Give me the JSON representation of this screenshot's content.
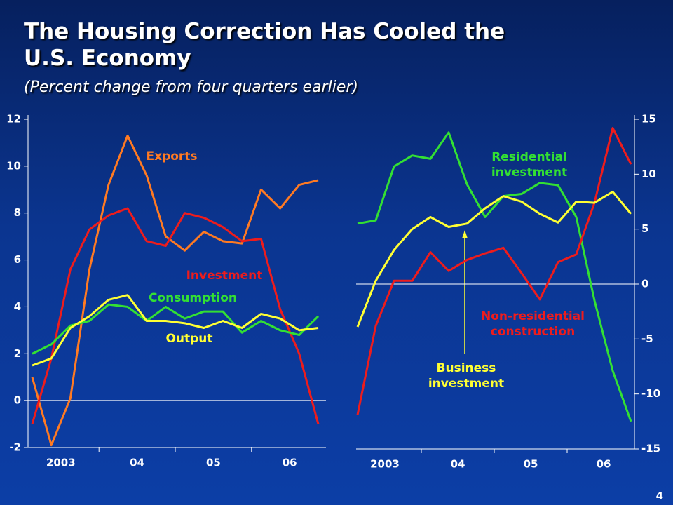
{
  "title": "The Housing Correction Has Cooled the U.S. Economy",
  "subtitle": "(Percent change from four quarters earlier)",
  "page_number": "4",
  "chart_data": [
    {
      "type": "line",
      "categories": [
        "2003",
        null,
        null,
        null,
        "04",
        null,
        null,
        null,
        "05",
        null,
        null,
        null,
        "06",
        null,
        null,
        null
      ],
      "ylim": [
        -2,
        12
      ],
      "yticks": [
        -2,
        0,
        2,
        4,
        6,
        8,
        10,
        12
      ],
      "axis_side": "left",
      "series": [
        {
          "name": "Exports",
          "color": "#ff7a22",
          "values": [
            1.0,
            -1.9,
            0.1,
            5.6,
            9.2,
            11.3,
            9.6,
            7.0,
            6.4,
            7.2,
            6.8,
            6.7,
            9.0,
            8.2,
            9.2,
            9.4
          ]
        },
        {
          "name": "Investment",
          "color": "#ee1c1c",
          "values": [
            -1.0,
            1.8,
            5.6,
            7.3,
            7.9,
            8.2,
            6.8,
            6.6,
            8.0,
            7.8,
            7.4,
            6.8,
            6.9,
            3.9,
            2.0,
            -1.0
          ]
        },
        {
          "name": "Consumption",
          "color": "#33e033",
          "values": [
            2.0,
            2.4,
            3.2,
            3.4,
            4.1,
            4.0,
            3.4,
            4.0,
            3.5,
            3.8,
            3.8,
            2.9,
            3.4,
            3.0,
            2.8,
            3.6
          ]
        },
        {
          "name": "Output",
          "color": "#ffff33",
          "values": [
            1.5,
            1.8,
            3.1,
            3.6,
            4.3,
            4.5,
            3.4,
            3.4,
            3.3,
            3.1,
            3.4,
            3.1,
            3.7,
            3.5,
            3.0,
            3.1
          ]
        }
      ]
    },
    {
      "type": "line",
      "categories": [
        "2003",
        null,
        null,
        null,
        "04",
        null,
        null,
        null,
        "05",
        null,
        null,
        null,
        "06",
        null,
        null,
        null
      ],
      "ylim": [
        -15,
        15
      ],
      "yticks": [
        -15,
        -10,
        -5,
        0,
        5,
        10,
        15
      ],
      "axis_side": "right",
      "series": [
        {
          "name": "Residential investment",
          "color": "#33e033",
          "values": [
            5.5,
            5.8,
            10.7,
            11.7,
            11.4,
            13.8,
            9.1,
            6.1,
            8.0,
            8.2,
            9.2,
            9.0,
            6.1,
            -1.5,
            -7.9,
            -12.5
          ]
        },
        {
          "name": "Non-residential construction",
          "color": "#ee1c1c",
          "values": [
            -11.9,
            -3.8,
            0.3,
            0.3,
            2.9,
            1.2,
            2.2,
            2.8,
            3.3,
            1.0,
            -1.4,
            2.0,
            2.7,
            7.4,
            14.2,
            10.9
          ]
        },
        {
          "name": "Business investment",
          "color": "#ffff33",
          "values": [
            -3.9,
            0.3,
            3.1,
            5.0,
            6.1,
            5.2,
            5.5,
            6.9,
            8.0,
            7.5,
            6.4,
            5.6,
            7.5,
            7.4,
            8.4,
            6.4
          ]
        }
      ]
    }
  ]
}
